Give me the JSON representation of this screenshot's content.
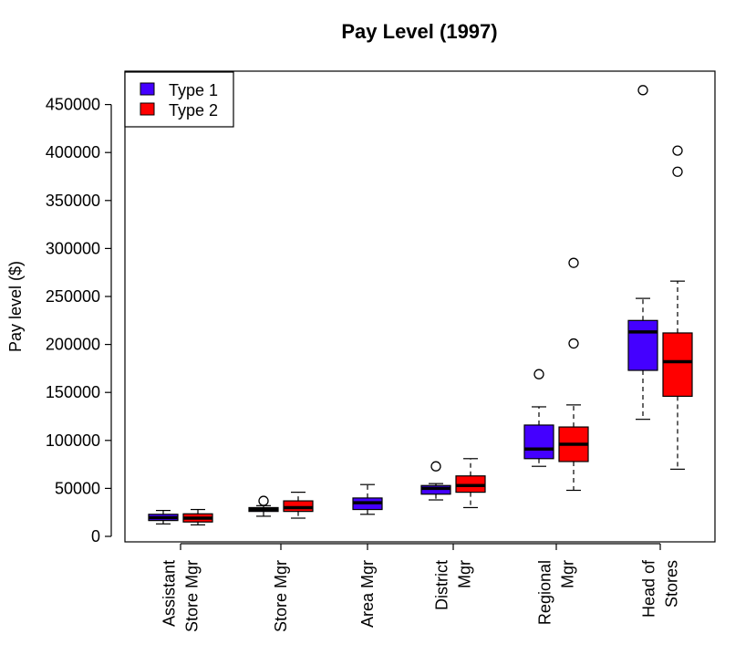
{
  "chart_data": {
    "type": "boxplot",
    "title": "Pay Level (1997)",
    "ylabel": "Pay level ($)",
    "xlabel": "",
    "ylim": [
      0,
      480000
    ],
    "yticks": [
      0,
      50000,
      100000,
      150000,
      200000,
      250000,
      300000,
      350000,
      400000,
      450000
    ],
    "ytick_labels": [
      "0",
      "50000",
      "100000",
      "150000",
      "200000",
      "250000",
      "300000",
      "350000",
      "400000",
      "450000"
    ],
    "categories": [
      {
        "lines": [
          "Assistant",
          "Store Mgr"
        ]
      },
      {
        "lines": [
          "Store Mgr"
        ]
      },
      {
        "lines": [
          "Area Mgr"
        ]
      },
      {
        "lines": [
          "District",
          "Mgr"
        ]
      },
      {
        "lines": [
          "Regional",
          "Mgr"
        ]
      },
      {
        "lines": [
          "Head of",
          "Stores"
        ]
      }
    ],
    "legend": {
      "position": "top-left",
      "entries": [
        {
          "label": "Type 1",
          "color": "#4400ff"
        },
        {
          "label": "Type 2",
          "color": "#ff0000"
        }
      ]
    },
    "series": [
      {
        "name": "Type 1",
        "color": "#4400ff",
        "boxes": [
          {
            "category": 0,
            "whisker_low": 13000,
            "q1": 16500,
            "median": 19500,
            "q3": 23000,
            "whisker_high": 27000,
            "outliers": []
          },
          {
            "category": 1,
            "whisker_low": 21000,
            "q1": 26000,
            "median": 28000,
            "q3": 30000,
            "whisker_high": 32000,
            "outliers": [
              37000
            ]
          },
          {
            "category": 2,
            "whisker_low": 23000,
            "q1": 28000,
            "median": 35000,
            "q3": 40000,
            "whisker_high": 54000,
            "outliers": []
          },
          {
            "category": 3,
            "whisker_low": 38000,
            "q1": 44000,
            "median": 50000,
            "q3": 53000,
            "whisker_high": 55000,
            "outliers": [
              73000
            ]
          },
          {
            "category": 4,
            "whisker_low": 73000,
            "q1": 81000,
            "median": 91000,
            "q3": 116000,
            "whisker_high": 135000,
            "outliers": [
              169000
            ]
          },
          {
            "category": 5,
            "whisker_low": 122000,
            "q1": 173000,
            "median": 213000,
            "q3": 225000,
            "whisker_high": 248000,
            "outliers": [
              465000
            ]
          }
        ]
      },
      {
        "name": "Type 2",
        "color": "#ff0000",
        "boxes": [
          {
            "category": 0,
            "whisker_low": 12000,
            "q1": 15000,
            "median": 19000,
            "q3": 23500,
            "whisker_high": 28000,
            "outliers": []
          },
          {
            "category": 1,
            "whisker_low": 19000,
            "q1": 26000,
            "median": 30000,
            "q3": 37000,
            "whisker_high": 46000,
            "outliers": []
          },
          {
            "category": 3,
            "whisker_low": 30000,
            "q1": 46000,
            "median": 53000,
            "q3": 63000,
            "whisker_high": 81000,
            "outliers": []
          },
          {
            "category": 4,
            "whisker_low": 48000,
            "q1": 78000,
            "median": 96000,
            "q3": 114000,
            "whisker_high": 137000,
            "outliers": [
              201000,
              285000
            ]
          },
          {
            "category": 5,
            "whisker_low": 70000,
            "q1": 146000,
            "median": 182000,
            "q3": 212000,
            "whisker_high": 266000,
            "outliers": [
              380000,
              402000
            ]
          }
        ]
      }
    ],
    "grid": false
  }
}
